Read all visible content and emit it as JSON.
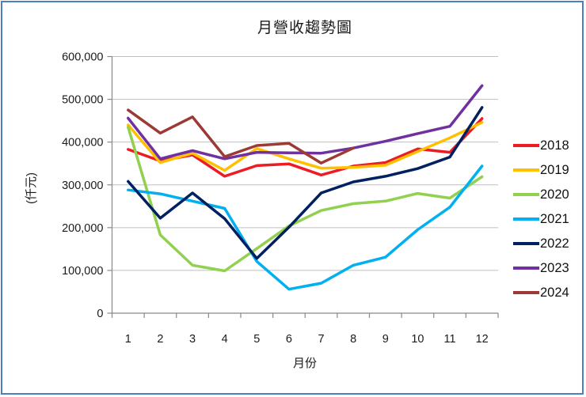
{
  "frame": {
    "border_color": "#4C7FBE",
    "background": "#FFFFFF"
  },
  "chart_data": {
    "type": "line",
    "title": "月營收趨勢圖",
    "xlabel": "月份",
    "ylabel": "(仟元)",
    "x": [
      "1",
      "2",
      "3",
      "4",
      "5",
      "6",
      "7",
      "8",
      "9",
      "10",
      "11",
      "12"
    ],
    "ylim": [
      0,
      600000
    ],
    "ytick_step": 100000,
    "ytick_labels": [
      "0",
      "100,000",
      "200,000",
      "300,000",
      "400,000",
      "500,000",
      "600,000"
    ],
    "grid": "horizontal",
    "grid_color": "#BFBFBF",
    "axis_color": "#898989",
    "legend_position": "right",
    "series": [
      {
        "name": "2018",
        "color": "#ED1C24",
        "values": [
          383000,
          356000,
          370000,
          320000,
          345000,
          349000,
          323000,
          344000,
          352000,
          384000,
          376000,
          455000
        ]
      },
      {
        "name": "2019",
        "color": "#FFC000",
        "values": [
          440000,
          352000,
          374000,
          334000,
          385000,
          361000,
          339000,
          341000,
          346000,
          378000,
          410000,
          446000
        ]
      },
      {
        "name": "2020",
        "color": "#92D050",
        "values": [
          435000,
          183000,
          112000,
          99000,
          151000,
          204000,
          240000,
          256000,
          262000,
          280000,
          269000,
          319000
        ]
      },
      {
        "name": "2021",
        "color": "#00B0F0",
        "values": [
          288000,
          279000,
          262000,
          245000,
          121000,
          56000,
          70000,
          112000,
          131000,
          195000,
          248000,
          344000
        ]
      },
      {
        "name": "2022",
        "color": "#002060",
        "values": [
          308000,
          222000,
          281000,
          221000,
          128000,
          201000,
          281000,
          307000,
          320000,
          338000,
          365000,
          481000
        ]
      },
      {
        "name": "2023",
        "color": "#7030A0",
        "values": [
          456000,
          361000,
          380000,
          361000,
          376000,
          375000,
          374000,
          386000,
          402000,
          420000,
          437000,
          532000
        ]
      },
      {
        "name": "2024",
        "color": "#9C3A36",
        "values": [
          475000,
          421000,
          459000,
          366000,
          392000,
          397000,
          351000,
          386000
        ]
      }
    ]
  }
}
